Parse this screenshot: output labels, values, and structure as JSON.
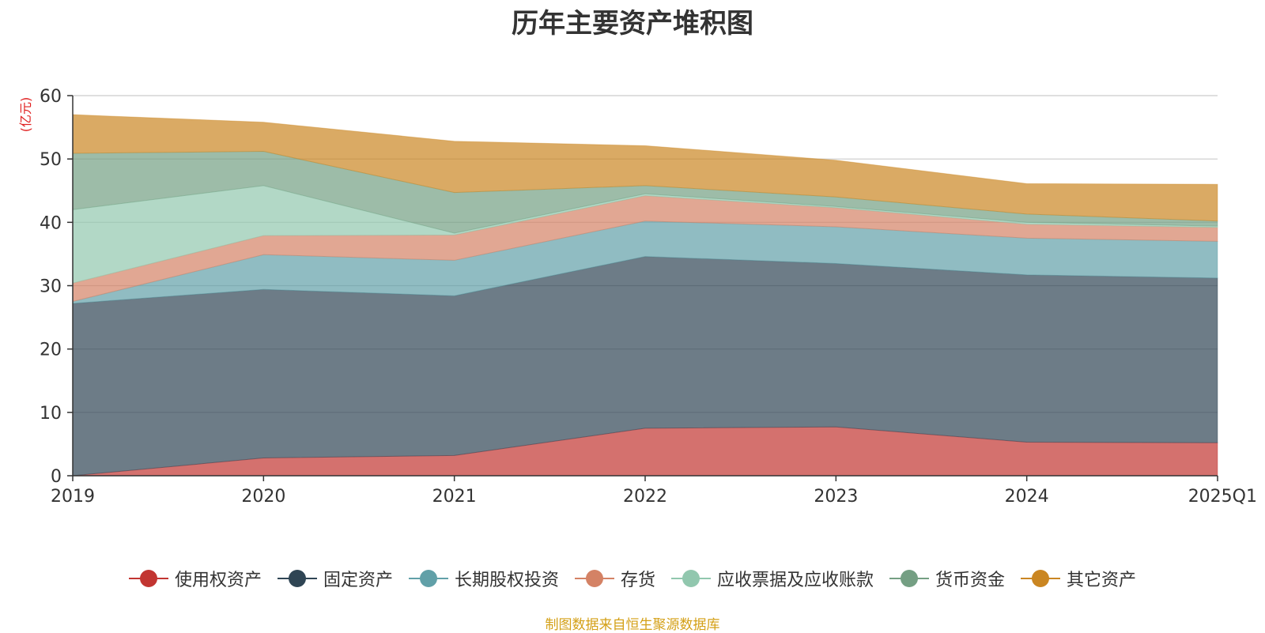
{
  "chart_data": {
    "type": "area",
    "stacked": true,
    "title": "历年主要资产堆积图",
    "unit_label": "(亿元)",
    "categories": [
      "2019",
      "2020",
      "2021",
      "2022",
      "2023",
      "2024",
      "2025Q1"
    ],
    "ylim": [
      0,
      60
    ],
    "yticks": [
      0,
      10,
      20,
      30,
      40,
      50,
      60
    ],
    "grid": true,
    "legend_position": "bottom",
    "series": [
      {
        "name": "使用权资产",
        "color": "#c23531",
        "values": [
          0.0,
          2.8,
          3.2,
          7.5,
          7.7,
          5.3,
          5.2
        ]
      },
      {
        "name": "固定资产",
        "color": "#2f4554",
        "values": [
          27.2,
          26.6,
          25.2,
          27.1,
          25.8,
          26.4,
          26.0
        ]
      },
      {
        "name": "长期股权投资",
        "color": "#61a0a8",
        "values": [
          0.3,
          5.5,
          5.6,
          5.6,
          5.8,
          5.8,
          5.8
        ]
      },
      {
        "name": "存货",
        "color": "#d48265",
        "values": [
          2.9,
          3.0,
          4.0,
          4.0,
          3.0,
          2.2,
          2.2
        ]
      },
      {
        "name": "应收票据及应收账款",
        "color": "#91c7ae",
        "values": [
          11.6,
          7.9,
          0.3,
          0.3,
          0.2,
          0.3,
          0.2
        ]
      },
      {
        "name": "货币资金",
        "color": "#749f83",
        "values": [
          8.9,
          5.4,
          6.4,
          1.3,
          1.5,
          1.3,
          0.8
        ]
      },
      {
        "name": "其它资产",
        "color": "#ca8622",
        "values": [
          6.1,
          4.6,
          8.1,
          6.3,
          5.8,
          4.8,
          5.8
        ]
      }
    ]
  },
  "footer": {
    "source_note": "制图数据来自恒生聚源数据库"
  }
}
